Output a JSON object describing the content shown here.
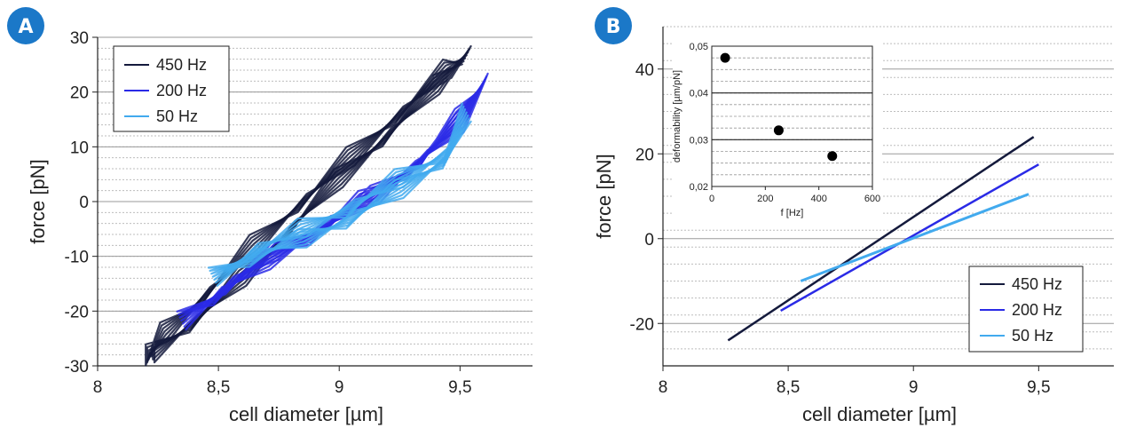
{
  "colors": {
    "s450": "#141a3c",
    "s200": "#2a2ae6",
    "s50": "#42aaee",
    "badge": "#1b78c8"
  },
  "chart_data": [
    {
      "panel": "A",
      "type": "line",
      "xlabel": "cell diameter [µm]",
      "ylabel": "force [pN]",
      "xlim": [
        8,
        9.8
      ],
      "ylim": [
        -30,
        30
      ],
      "xticks": [
        8,
        8.5,
        9,
        9.5
      ],
      "xtick_labels": [
        "8",
        "8,5",
        "9",
        "9,5"
      ],
      "yticks": [
        -30,
        -20,
        -10,
        0,
        10,
        20,
        30
      ],
      "ytick_labels": [
        "-30",
        "-20",
        "-10",
        "0",
        "10",
        "20",
        "30"
      ],
      "grid": true,
      "legend_position": "top-left",
      "series": [
        {
          "name": "450 Hz",
          "color": "s450",
          "description": "hysteresis loop",
          "x": [
            8.22,
            8.4,
            8.6,
            8.8,
            9.0,
            9.2,
            9.4,
            9.53,
            9.45,
            9.25,
            9.05,
            8.85,
            8.65,
            8.45,
            8.28,
            8.22
          ],
          "y": [
            -28,
            -22,
            -14,
            -5,
            4,
            12,
            21,
            27,
            24,
            16,
            8,
            0,
            -8,
            -17,
            -24,
            -28
          ]
        },
        {
          "name": "200 Hz",
          "color": "s200",
          "description": "hysteresis loop",
          "x": [
            8.35,
            8.55,
            8.75,
            8.95,
            9.15,
            9.35,
            9.5,
            9.6,
            9.5,
            9.3,
            9.1,
            8.9,
            8.7,
            8.5,
            8.35
          ],
          "y": [
            -22,
            -15,
            -9,
            -4,
            1,
            8,
            15,
            22,
            14,
            6,
            0,
            -6,
            -11,
            -17,
            -22
          ]
        },
        {
          "name": "50 Hz",
          "color": "s50",
          "description": "hysteresis loop",
          "x": [
            8.48,
            8.65,
            8.85,
            9.05,
            9.25,
            9.45,
            9.53,
            9.45,
            9.25,
            9.05,
            8.85,
            8.65,
            8.48
          ],
          "y": [
            -14,
            -9,
            -5,
            -1,
            4,
            9,
            16,
            8,
            2,
            -3,
            -7,
            -10,
            -14
          ]
        }
      ]
    },
    {
      "panel": "B",
      "type": "line",
      "xlabel": "cell diameter [µm]",
      "ylabel": "force [pN]",
      "xlim": [
        8,
        9.8
      ],
      "ylim": [
        -30,
        50
      ],
      "xticks": [
        8,
        8.5,
        9,
        9.5
      ],
      "xtick_labels": [
        "8",
        "8,5",
        "9",
        "9,5"
      ],
      "yticks": [
        -20,
        0,
        20,
        40
      ],
      "ytick_labels": [
        "-20",
        "0",
        "20",
        "40"
      ],
      "grid": true,
      "legend_position": "bottom-right",
      "series": [
        {
          "name": "450 Hz",
          "color": "s450",
          "x": [
            8.26,
            9.48
          ],
          "y": [
            -24,
            24
          ]
        },
        {
          "name": "200 Hz",
          "color": "s200",
          "x": [
            8.47,
            9.5
          ],
          "y": [
            -17,
            17.5
          ]
        },
        {
          "name": "50 Hz",
          "color": "s50",
          "x": [
            8.55,
            9.46
          ],
          "y": [
            -10,
            10.5
          ]
        }
      ],
      "inset": {
        "type": "scatter",
        "xlabel": "f [Hz]",
        "ylabel": "deformability [µm/pN]",
        "xlim": [
          0,
          600
        ],
        "ylim": [
          0.02,
          0.05
        ],
        "xticks": [
          0,
          200,
          400,
          600
        ],
        "xtick_labels": [
          "0",
          "200",
          "400",
          "600"
        ],
        "yticks": [
          0.02,
          0.03,
          0.04,
          0.05
        ],
        "ytick_labels": [
          "0,02",
          "0,03",
          "0,04",
          "0,05"
        ],
        "points": [
          {
            "x": 50,
            "y": 0.0475
          },
          {
            "x": 250,
            "y": 0.032
          },
          {
            "x": 450,
            "y": 0.0265
          }
        ]
      }
    }
  ],
  "badges": {
    "a": "A",
    "b": "B"
  }
}
